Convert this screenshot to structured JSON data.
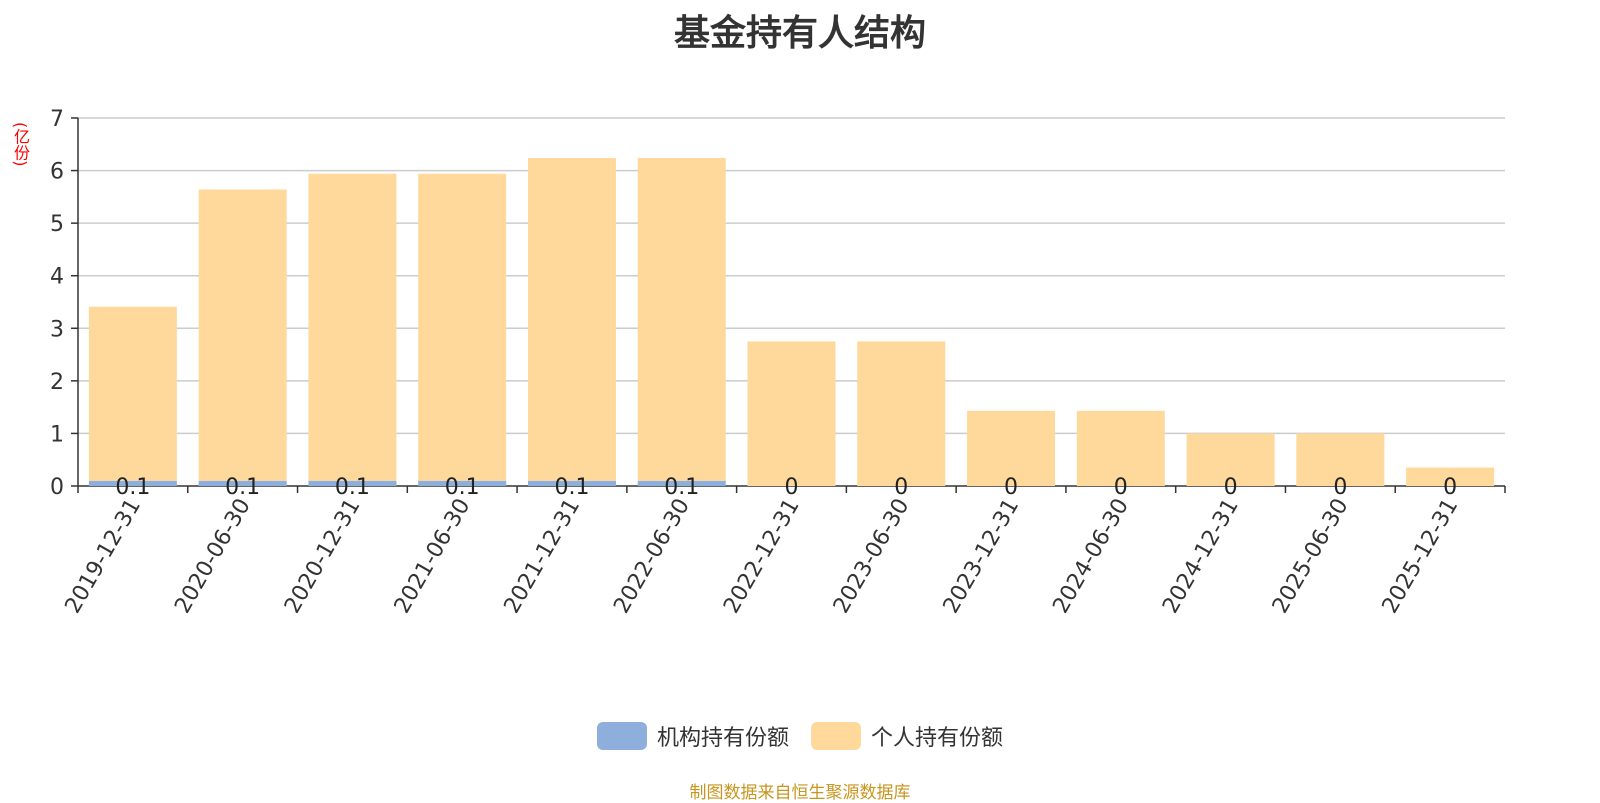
{
  "chart_data": {
    "type": "bar",
    "stacked": true,
    "title": "基金持有人结构",
    "unit": "(亿份)",
    "categories": [
      "2019-12-31",
      "2020-06-30",
      "2020-12-31",
      "2021-06-30",
      "2021-12-31",
      "2022-06-30",
      "2022-12-31",
      "2023-06-30",
      "2023-12-31",
      "2024-06-30",
      "2024-12-31",
      "2025-06-30",
      "2025-12-31"
    ],
    "series": [
      {
        "name": "机构持有份额",
        "color": "#8eaedb",
        "values": [
          0.1,
          0.1,
          0.1,
          0.1,
          0.1,
          0.1,
          0,
          0,
          0,
          0,
          0,
          0,
          0
        ],
        "labels": [
          "0.1",
          "0.1",
          "0.1",
          "0.1",
          "0.1",
          "0.1",
          "0",
          "0",
          "0",
          "0",
          "0",
          "0",
          "0"
        ]
      },
      {
        "name": "个人持有份额",
        "color": "#fed99b",
        "values": [
          3.31,
          5.54,
          5.84,
          5.84,
          6.14,
          6.14,
          2.75,
          2.75,
          1.43,
          1.43,
          1.0,
          1.0,
          0.35
        ]
      }
    ],
    "ylim": [
      0,
      7
    ],
    "yticks": [
      "0",
      "1",
      "2",
      "3",
      "4",
      "5",
      "6",
      "7"
    ],
    "grid": true,
    "legend_position": "bottom"
  },
  "source": "制图数据来自恒生聚源数据库"
}
